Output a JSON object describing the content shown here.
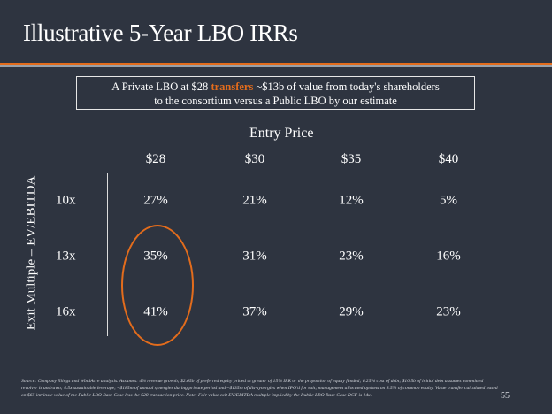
{
  "slide": {
    "title": "Illustrative 5-Year LBO IRRs",
    "page_number": "55"
  },
  "callout": {
    "line1_before": "A Private LBO at $28 ",
    "line1_highlight": "transfers",
    "line1_after": " ~$13b of value from today's shareholders",
    "line2": "to the consortium versus a Public LBO by our estimate"
  },
  "footnote": "Source: Company filings and WindAcre analysis. Assumes: 4% revenue growth; $2.65b of preferred equity priced at greater of 15% IRR or the proportion of equity funded; 6.25% cost of debt; $10.5b of initial debt assumes committed revolver is undrawn; 4.5x sustainable leverage; ~$185m of annual synergies during private period and ~$135m of dis-synergies when IPO'd for exit; management allocated options on 8.5% of common equity. Value transfer calculated based on $65 intrinsic value of the Public LBO Base Case less the $28 transaction price. Note: Fair value exit EV/EBITDA multiple implied by the Public LBO Base Case DCF is 14x.",
  "colors": {
    "background": "#2e3440",
    "accent": "#e36c1c",
    "text": "#ffffff"
  },
  "chart_data": {
    "type": "table",
    "title": "Entry Price",
    "xlabel": "Entry Price",
    "ylabel": "Exit  Multiple – EV/EBITDA",
    "columns": [
      "$28",
      "$30",
      "$35",
      "$40"
    ],
    "rows": [
      "10x",
      "13x",
      "16x"
    ],
    "values": [
      [
        "27%",
        "21%",
        "12%",
        "5%"
      ],
      [
        "35%",
        "31%",
        "23%",
        "16%"
      ],
      [
        "41%",
        "37%",
        "29%",
        "23%"
      ]
    ],
    "highlighted_column": "$28",
    "highlighted_rows": [
      "13x",
      "16x"
    ]
  }
}
